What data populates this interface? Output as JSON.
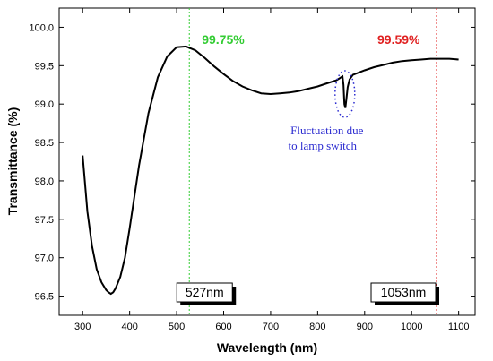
{
  "chart_data": {
    "type": "line",
    "xlabel": "Wavelength (nm)",
    "ylabel": "Transmittance (%)",
    "xlim": [
      250,
      1135
    ],
    "ylim": [
      96.25,
      100.25
    ],
    "xticks": [
      300,
      400,
      500,
      600,
      700,
      800,
      900,
      1000,
      1100
    ],
    "yticks": [
      "96.5",
      "97.0",
      "97.5",
      "98.0",
      "98.5",
      "99.0",
      "99.5",
      "100.0"
    ],
    "grid": false,
    "series": [
      {
        "color": "#000000",
        "x": [
          300,
          310,
          320,
          330,
          340,
          350,
          355,
          360,
          365,
          370,
          380,
          390,
          400,
          420,
          440,
          460,
          480,
          500,
          520,
          540,
          560,
          580,
          600,
          620,
          640,
          660,
          680,
          700,
          720,
          740,
          760,
          780,
          800,
          820,
          840,
          848,
          853,
          855,
          857,
          859,
          861,
          864,
          868,
          875,
          900,
          920,
          940,
          960,
          980,
          1000,
          1020,
          1040,
          1060,
          1080,
          1100
        ],
        "y": [
          98.33,
          97.6,
          97.15,
          96.85,
          96.68,
          96.58,
          96.55,
          96.53,
          96.55,
          96.6,
          96.75,
          97.0,
          97.38,
          98.2,
          98.88,
          99.35,
          99.62,
          99.74,
          99.75,
          99.7,
          99.6,
          99.49,
          99.39,
          99.3,
          99.23,
          99.18,
          99.14,
          99.13,
          99.14,
          99.15,
          99.17,
          99.2,
          99.23,
          99.27,
          99.31,
          99.34,
          99.36,
          99.25,
          99.0,
          98.95,
          99.05,
          99.22,
          99.32,
          99.38,
          99.44,
          99.48,
          99.51,
          99.54,
          99.56,
          99.57,
          99.58,
          99.59,
          99.59,
          99.59,
          99.58
        ]
      }
    ],
    "markers": [
      {
        "wavelength": 527,
        "label": "527nm",
        "peak_label": "99.75%",
        "color": "#33cc33"
      },
      {
        "wavelength": 1053,
        "label": "1053nm",
        "peak_label": "99.59%",
        "color": "#e02020"
      }
    ],
    "annotation": {
      "line1": "Fluctuation due",
      "line2": "to lamp switch",
      "center_x": 858,
      "center_y": 99.13,
      "color": "#2a2ad0"
    }
  }
}
